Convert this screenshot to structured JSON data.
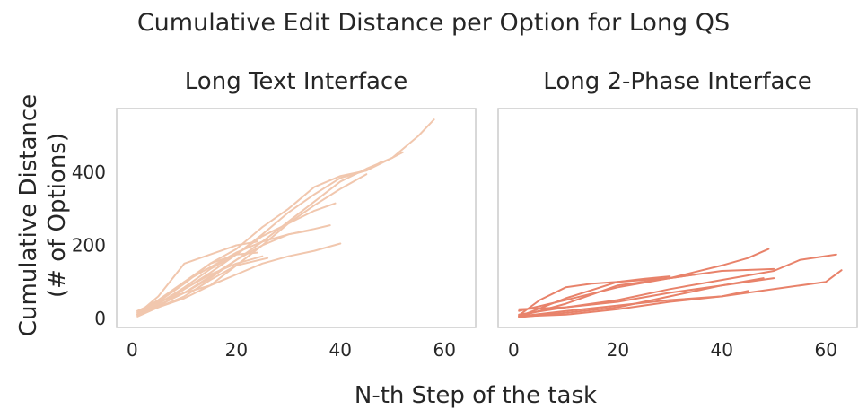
{
  "figure": {
    "suptitle": "Cumulative Edit Distance per Option for Long QS",
    "ylabel_line1": "Cumulative Distance",
    "ylabel_line2": "(# of Options)",
    "xlabel": "N-th Step of the task"
  },
  "chart_data": [
    {
      "type": "line",
      "title": "Long Text Interface",
      "xlabel": "N-th Step of the task",
      "ylabel": "Cumulative Distance (# of Options)",
      "xlim": [
        -3,
        66
      ],
      "ylim": [
        -25,
        575
      ],
      "xticks": [
        0,
        20,
        40,
        60
      ],
      "yticks": [
        0,
        200,
        400
      ],
      "grid": false,
      "color": "#f1c7ae",
      "series": [
        {
          "x": [
            1,
            5,
            10,
            15,
            20,
            25,
            30,
            35,
            40,
            45,
            50,
            55,
            58
          ],
          "y": [
            15,
            35,
            70,
            110,
            160,
            210,
            265,
            320,
            375,
            410,
            440,
            500,
            545
          ]
        },
        {
          "x": [
            1,
            5,
            10,
            15,
            20,
            25,
            30,
            35,
            40,
            45,
            50,
            52
          ],
          "y": [
            10,
            40,
            80,
            125,
            175,
            230,
            290,
            340,
            385,
            405,
            440,
            455
          ]
        },
        {
          "x": [
            1,
            5,
            10,
            15,
            20,
            25,
            30,
            35,
            40,
            45,
            48
          ],
          "y": [
            20,
            45,
            95,
            150,
            190,
            250,
            300,
            360,
            390,
            405,
            430
          ]
        },
        {
          "x": [
            1,
            5,
            10,
            15,
            20,
            25,
            30,
            35,
            40,
            45
          ],
          "y": [
            12,
            30,
            60,
            105,
            145,
            200,
            260,
            310,
            355,
            395
          ]
        },
        {
          "x": [
            1,
            5,
            10,
            15,
            20,
            25,
            30,
            35,
            39
          ],
          "y": [
            10,
            40,
            85,
            135,
            175,
            225,
            260,
            295,
            315
          ]
        },
        {
          "x": [
            1,
            5,
            10,
            15,
            20,
            25,
            30,
            35,
            38
          ],
          "y": [
            18,
            50,
            100,
            140,
            180,
            210,
            230,
            245,
            255
          ]
        },
        {
          "x": [
            1,
            5,
            10,
            15,
            20,
            25,
            30,
            35,
            40
          ],
          "y": [
            8,
            30,
            55,
            90,
            120,
            150,
            170,
            185,
            205
          ]
        },
        {
          "x": [
            1,
            5,
            10,
            15,
            20,
            25,
            30,
            34
          ],
          "y": [
            10,
            35,
            70,
            115,
            160,
            200,
            230,
            240
          ]
        },
        {
          "x": [
            1,
            5,
            10,
            15,
            20,
            24
          ],
          "y": [
            15,
            45,
            100,
            150,
            175,
            180
          ]
        },
        {
          "x": [
            1,
            5,
            10,
            15,
            20,
            25
          ],
          "y": [
            5,
            30,
            80,
            120,
            150,
            170
          ]
        },
        {
          "x": [
            1,
            5,
            10,
            15,
            20,
            24
          ],
          "y": [
            12,
            60,
            150,
            175,
            200,
            210
          ]
        },
        {
          "x": [
            1,
            5,
            10,
            15,
            20,
            26
          ],
          "y": [
            20,
            45,
            70,
            90,
            145,
            165
          ]
        }
      ]
    },
    {
      "type": "line",
      "title": "Long 2-Phase Interface",
      "xlabel": "N-th Step of the task",
      "ylabel": "",
      "xlim": [
        -3,
        66
      ],
      "ylim": [
        -25,
        575
      ],
      "xticks": [
        0,
        20,
        40,
        60
      ],
      "yticks": [],
      "grid": false,
      "color": "#e8826a",
      "series": [
        {
          "x": [
            1,
            10,
            20,
            30,
            40,
            45,
            49
          ],
          "y": [
            20,
            50,
            85,
            110,
            145,
            165,
            190
          ]
        },
        {
          "x": [
            1,
            10,
            20,
            30,
            40,
            50,
            55,
            62
          ],
          "y": [
            25,
            30,
            50,
            80,
            105,
            130,
            160,
            175
          ]
        },
        {
          "x": [
            1,
            10,
            20,
            30,
            40,
            50,
            60,
            63
          ],
          "y": [
            5,
            10,
            25,
            45,
            60,
            80,
            100,
            132
          ]
        },
        {
          "x": [
            1,
            10,
            20,
            30,
            40,
            50
          ],
          "y": [
            5,
            40,
            90,
            110,
            130,
            135
          ]
        },
        {
          "x": [
            1,
            10,
            20,
            30,
            40,
            48
          ],
          "y": [
            10,
            30,
            45,
            70,
            90,
            110
          ]
        },
        {
          "x": [
            1,
            10,
            20,
            30,
            40,
            45
          ],
          "y": [
            5,
            20,
            35,
            50,
            60,
            75
          ]
        },
        {
          "x": [
            1,
            5,
            10,
            15,
            20,
            25,
            30,
            35
          ],
          "y": [
            8,
            50,
            85,
            95,
            100,
            105,
            110,
            120
          ]
        },
        {
          "x": [
            1,
            10,
            20,
            30,
            40,
            50
          ],
          "y": [
            3,
            15,
            30,
            60,
            90,
            110
          ]
        },
        {
          "x": [
            1,
            10,
            20,
            25,
            30
          ],
          "y": [
            5,
            55,
            100,
            108,
            115
          ]
        }
      ]
    }
  ]
}
